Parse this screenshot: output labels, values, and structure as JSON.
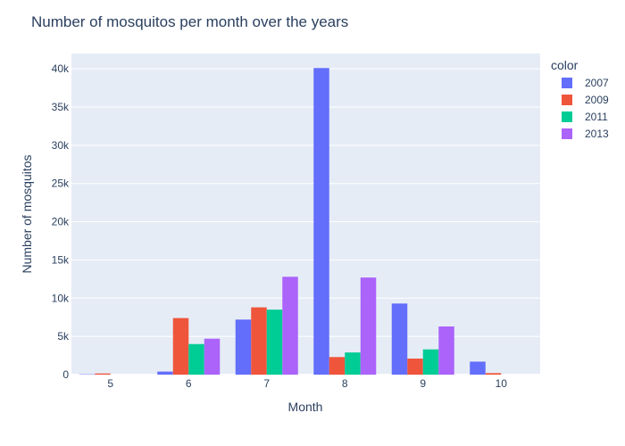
{
  "chart_data": {
    "type": "bar",
    "title": "Number of mosquitos per month over the years",
    "xlabel": "Month",
    "ylabel": "Number of mosquitos",
    "categories": [
      "5",
      "6",
      "7",
      "8",
      "9",
      "10"
    ],
    "ylim": [
      0,
      42000
    ],
    "yticks": [
      0,
      5000,
      10000,
      15000,
      20000,
      25000,
      30000,
      35000,
      40000
    ],
    "ytick_labels": [
      "0",
      "5k",
      "10k",
      "15k",
      "20k",
      "25k",
      "30k",
      "35k",
      "40k"
    ],
    "grid": true,
    "legend_title": "color",
    "legend_position": "top-right",
    "series": [
      {
        "name": "2007",
        "color": "#636efa",
        "values": [
          50,
          400,
          7200,
          40100,
          9300,
          1700
        ]
      },
      {
        "name": "2009",
        "color": "#ef553b",
        "values": [
          150,
          7400,
          8800,
          2300,
          2100,
          200
        ]
      },
      {
        "name": "2011",
        "color": "#00cc96",
        "values": [
          0,
          4000,
          8500,
          2900,
          3300,
          0
        ]
      },
      {
        "name": "2013",
        "color": "#ab63fa",
        "values": [
          0,
          4700,
          12800,
          12700,
          6300,
          0
        ]
      }
    ]
  }
}
